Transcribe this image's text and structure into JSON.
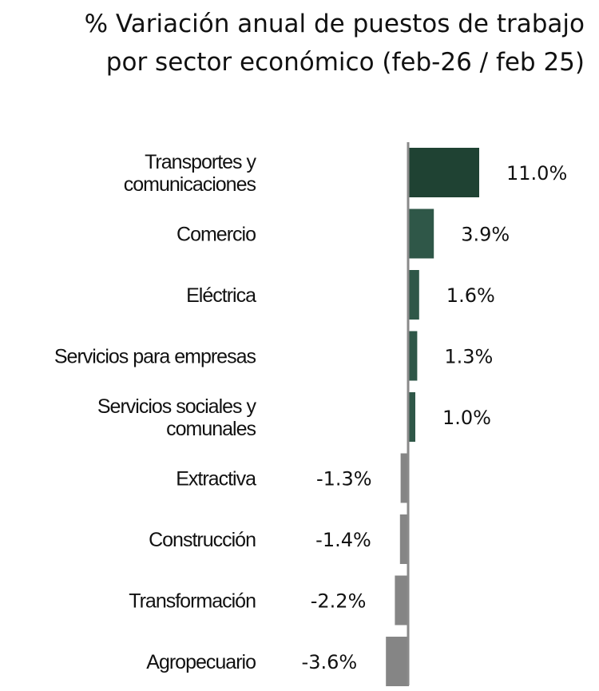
{
  "chart_data": {
    "type": "bar",
    "orientation": "horizontal",
    "title": [
      "% Variación anual de puestos de trabajo",
      "por sector económico (feb-26 / feb 25)"
    ],
    "categories": [
      [
        "Transportes y",
        "comunicaciones"
      ],
      [
        "Comercio"
      ],
      [
        "Eléctrica"
      ],
      [
        "Servicios para empresas"
      ],
      [
        "Servicios sociales y",
        "comunales"
      ],
      [
        "Extractiva"
      ],
      [
        "Construcción"
      ],
      [
        "Transformación"
      ],
      [
        "Agropecuario"
      ]
    ],
    "values": [
      11.0,
      3.9,
      1.6,
      1.3,
      1.0,
      -1.3,
      -1.4,
      -2.2,
      -3.6
    ],
    "value_labels": [
      "11.0%",
      "3.9%",
      "1.6%",
      "1.3%",
      "1.0%",
      "-1.3%",
      "-1.4%",
      "-2.2%",
      "-3.6%"
    ],
    "colors": [
      "#1f4233",
      "#2f5748",
      "#2f5748",
      "#2f5748",
      "#2f5748",
      "#858585",
      "#858585",
      "#858585",
      "#858585"
    ],
    "axis_color": "#8a8a8a",
    "xlabel": "",
    "ylabel": "",
    "grid": false,
    "legend": "none"
  }
}
